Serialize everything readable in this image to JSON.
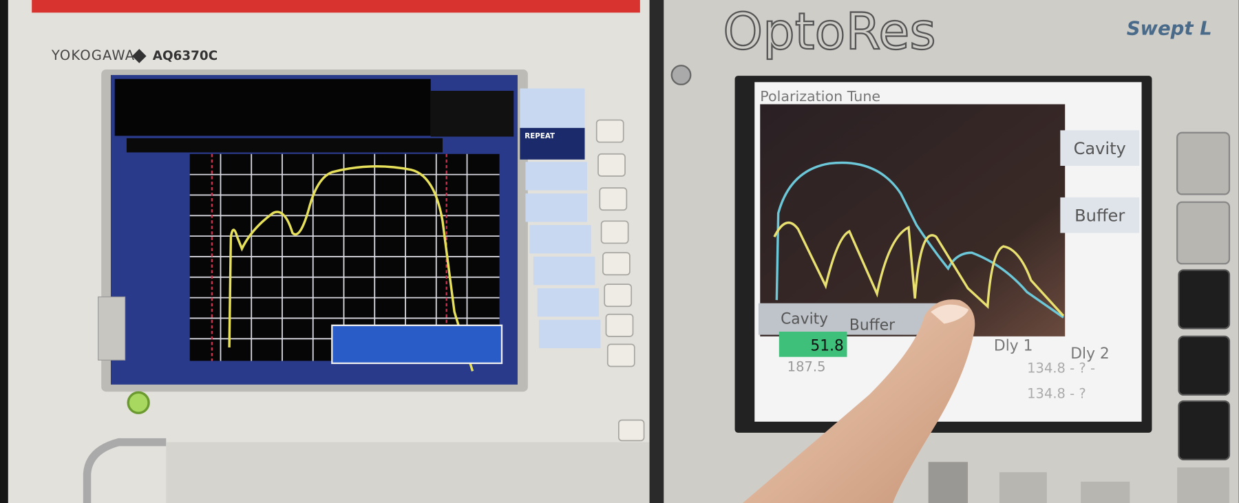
{
  "yokogawa": {
    "brand": "YOKOGAWA",
    "model": "AQ6370C",
    "button": "REPEAT"
  },
  "optores": {
    "brand": "OptoRes",
    "product": "Swept L",
    "screen_title": "Polarization Tune",
    "buttons": [
      "Cavity",
      "Buffer"
    ],
    "table": {
      "headers": [
        "Cavity",
        "Buffer",
        "Dly 1",
        "Dly 2"
      ],
      "values": [
        "51.8",
        "187.5",
        "134.8 - ? -",
        "134.8 - ?"
      ]
    }
  }
}
